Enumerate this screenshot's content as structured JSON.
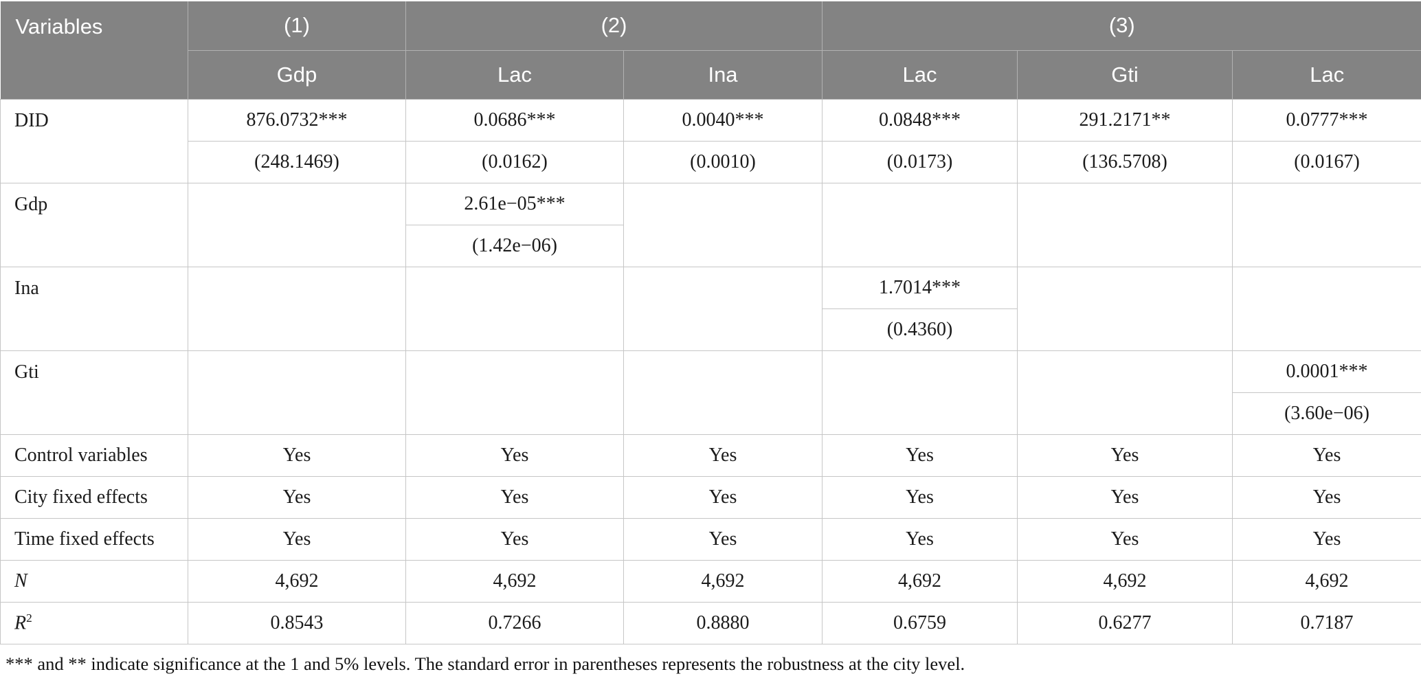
{
  "table": {
    "header": {
      "variables_label": "Variables",
      "groups": [
        {
          "label": "(1)"
        },
        {
          "label": "(2)"
        },
        {
          "label": "(3)"
        }
      ],
      "columns": [
        "Gdp",
        "Lac",
        "Ina",
        "Lac",
        "Gti",
        "Lac"
      ]
    },
    "coef_rows": [
      {
        "label": "DID",
        "cells": [
          {
            "coef": "876.0732***",
            "se": "(248.1469)"
          },
          {
            "coef": "0.0686***",
            "se": "(0.0162)"
          },
          {
            "coef": "0.0040***",
            "se": "(0.0010)"
          },
          {
            "coef": "0.0848***",
            "se": "(0.0173)"
          },
          {
            "coef": "291.2171**",
            "se": "(136.5708)"
          },
          {
            "coef": "0.0777***",
            "se": "(0.0167)"
          }
        ]
      },
      {
        "label": "Gdp",
        "cells": [
          null,
          {
            "coef": "2.61e−05***",
            "se": "(1.42e−06)"
          },
          null,
          null,
          null,
          null
        ]
      },
      {
        "label": "Ina",
        "cells": [
          null,
          null,
          null,
          {
            "coef": "1.7014***",
            "se": "(0.4360)"
          },
          null,
          null
        ]
      },
      {
        "label": "Gti",
        "cells": [
          null,
          null,
          null,
          null,
          null,
          {
            "coef": "0.0001***",
            "se": "(3.60e−06)"
          }
        ]
      }
    ],
    "info_rows": [
      {
        "label": "Control variables",
        "italic": false,
        "values": [
          "Yes",
          "Yes",
          "Yes",
          "Yes",
          "Yes",
          "Yes"
        ]
      },
      {
        "label": "City fixed effects",
        "italic": false,
        "values": [
          "Yes",
          "Yes",
          "Yes",
          "Yes",
          "Yes",
          "Yes"
        ]
      },
      {
        "label": "Time fixed effects",
        "italic": false,
        "values": [
          "Yes",
          "Yes",
          "Yes",
          "Yes",
          "Yes",
          "Yes"
        ]
      },
      {
        "label": "N",
        "italic": true,
        "values": [
          "4,692",
          "4,692",
          "4,692",
          "4,692",
          "4,692",
          "4,692"
        ]
      },
      {
        "label": "R",
        "sup": "2",
        "italic": true,
        "values": [
          "0.8543",
          "0.7266",
          "0.8880",
          "0.6759",
          "0.6277",
          "0.7187"
        ]
      }
    ],
    "footnote": "*** and ** indicate significance at the 1 and 5% levels. The standard error in parentheses represents the robustness at the city level."
  }
}
